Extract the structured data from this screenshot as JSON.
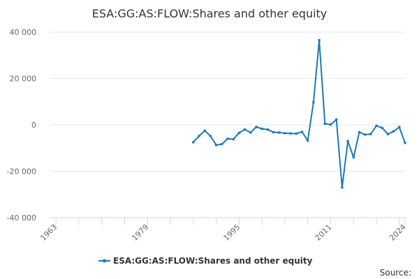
{
  "chart_data": {
    "type": "line",
    "title": "ESA:GG:AS:FLOW:Shares and other equity",
    "xlabel": "",
    "ylabel": "",
    "xlim": [
      1962,
      2024
    ],
    "ylim": [
      -40000,
      40000
    ],
    "x_ticks": [
      "1963",
      "1979",
      "1995",
      "2011",
      "2024"
    ],
    "y_ticks": [
      "40 000",
      "20 000",
      "0",
      "-20 000",
      "-40 000"
    ],
    "grid": "horizontal",
    "legend_position": "bottom",
    "series": [
      {
        "name": "ESA:GG:AS:FLOW:Shares and other equity",
        "color": "#1a7ab0",
        "points": [
          [
            1987,
            -7500
          ],
          [
            1988,
            -4800
          ],
          [
            1989,
            -2500
          ],
          [
            1990,
            -4800
          ],
          [
            1991,
            -8700
          ],
          [
            1992,
            -8300
          ],
          [
            1993,
            -6000
          ],
          [
            1994,
            -6200
          ],
          [
            1995,
            -3500
          ],
          [
            1996,
            -2000
          ],
          [
            1997,
            -3300
          ],
          [
            1998,
            -900
          ],
          [
            1999,
            -1700
          ],
          [
            2000,
            -2000
          ],
          [
            2001,
            -3200
          ],
          [
            2002,
            -3300
          ],
          [
            2003,
            -3600
          ],
          [
            2004,
            -3700
          ],
          [
            2005,
            -3800
          ],
          [
            2006,
            -3000
          ],
          [
            2007,
            -6800
          ],
          [
            2008,
            9700
          ],
          [
            2009,
            36500
          ],
          [
            2010,
            500
          ],
          [
            2011,
            100
          ],
          [
            2012,
            2300
          ],
          [
            2013,
            -27000
          ],
          [
            2014,
            -7000
          ],
          [
            2015,
            -14000
          ],
          [
            2016,
            -3200
          ],
          [
            2017,
            -4200
          ],
          [
            2018,
            -4000
          ],
          [
            2019,
            -400
          ],
          [
            2020,
            -1300
          ],
          [
            2021,
            -4000
          ],
          [
            2022,
            -2800
          ],
          [
            2023,
            -1000
          ],
          [
            2024,
            -7800
          ]
        ]
      }
    ]
  },
  "footer": {
    "source_label": "Source:"
  }
}
